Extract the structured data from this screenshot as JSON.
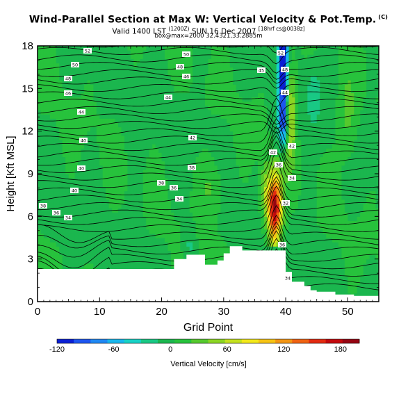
{
  "header": {
    "title": "Wind-Parallel Section at Max W: Vertical Velocity & Pot.Temp.",
    "title_sup": "(C)",
    "valid_main": "Valid 1400 LST",
    "valid_paren": "(1200Z)",
    "valid_date": "SUN 16 Dec 2007",
    "valid_run": "[18hrf cs@0038z]",
    "box_line": "box@max=2000 32.4321,33.2885m"
  },
  "chart_data": {
    "type": "heatmap",
    "title": "Wind-Parallel Section at Max W: Vertical Velocity & Pot.Temp.",
    "xlabel": "Grid Point",
    "ylabel": "Height [Kft MSL]",
    "xlim": [
      0,
      55
    ],
    "ylim": [
      0,
      18
    ],
    "xticks": [
      "0",
      "10",
      "20",
      "30",
      "40",
      "50"
    ],
    "yticks": [
      "0",
      "3",
      "6",
      "9",
      "12",
      "15",
      "18"
    ],
    "colorbar": {
      "label": "Vertical Velocity [cm/s]",
      "range": [
        -120,
        200
      ],
      "ticks": [
        "-120",
        "-60",
        "0",
        "60",
        "120",
        "180"
      ],
      "colors": [
        "#0a1fd4",
        "#1d55f0",
        "#1f88f3",
        "#18b6ec",
        "#17d2c6",
        "#19c884",
        "#1bb64e",
        "#27c23c",
        "#55c92d",
        "#8bd523",
        "#c4e11e",
        "#f2e81a",
        "#f6c313",
        "#f39513",
        "#ef6212",
        "#e22a10",
        "#c2080c",
        "#950512"
      ]
    },
    "contour_labels": {
      "note": "potential temperature isentrope labels, values as printed",
      "values": [
        "52",
        "50",
        "48",
        "46",
        "44",
        "50",
        "48",
        "46",
        "44",
        "45",
        "52",
        "48",
        "44",
        "42",
        "42",
        "40",
        "40",
        "38",
        "38",
        "36",
        "36",
        "34",
        "34",
        "32",
        "40",
        "38",
        "36",
        "34",
        "42",
        "42",
        "36",
        "34"
      ]
    },
    "terrain_heights_kft": [
      2.3,
      2.3,
      2.3,
      2.3,
      2.3,
      2.3,
      2.3,
      2.3,
      2.3,
      2.3,
      2.3,
      2.3,
      2.3,
      2.3,
      2.3,
      2.3,
      2.3,
      2.3,
      2.3,
      2.3,
      2.3,
      2.3,
      3.0,
      3.0,
      3.3,
      3.3,
      3.3,
      2.6,
      2.6,
      2.9,
      3.4,
      3.9,
      3.9,
      3.6,
      3.6,
      3.6,
      3.6,
      3.6,
      3.6,
      3.6,
      2.1,
      1.4,
      1.4,
      1.1,
      0.8,
      0.7,
      0.7,
      0.7,
      0.5,
      0.5,
      0.5,
      0.4,
      0.4,
      0.4,
      0.4,
      0.4
    ]
  }
}
